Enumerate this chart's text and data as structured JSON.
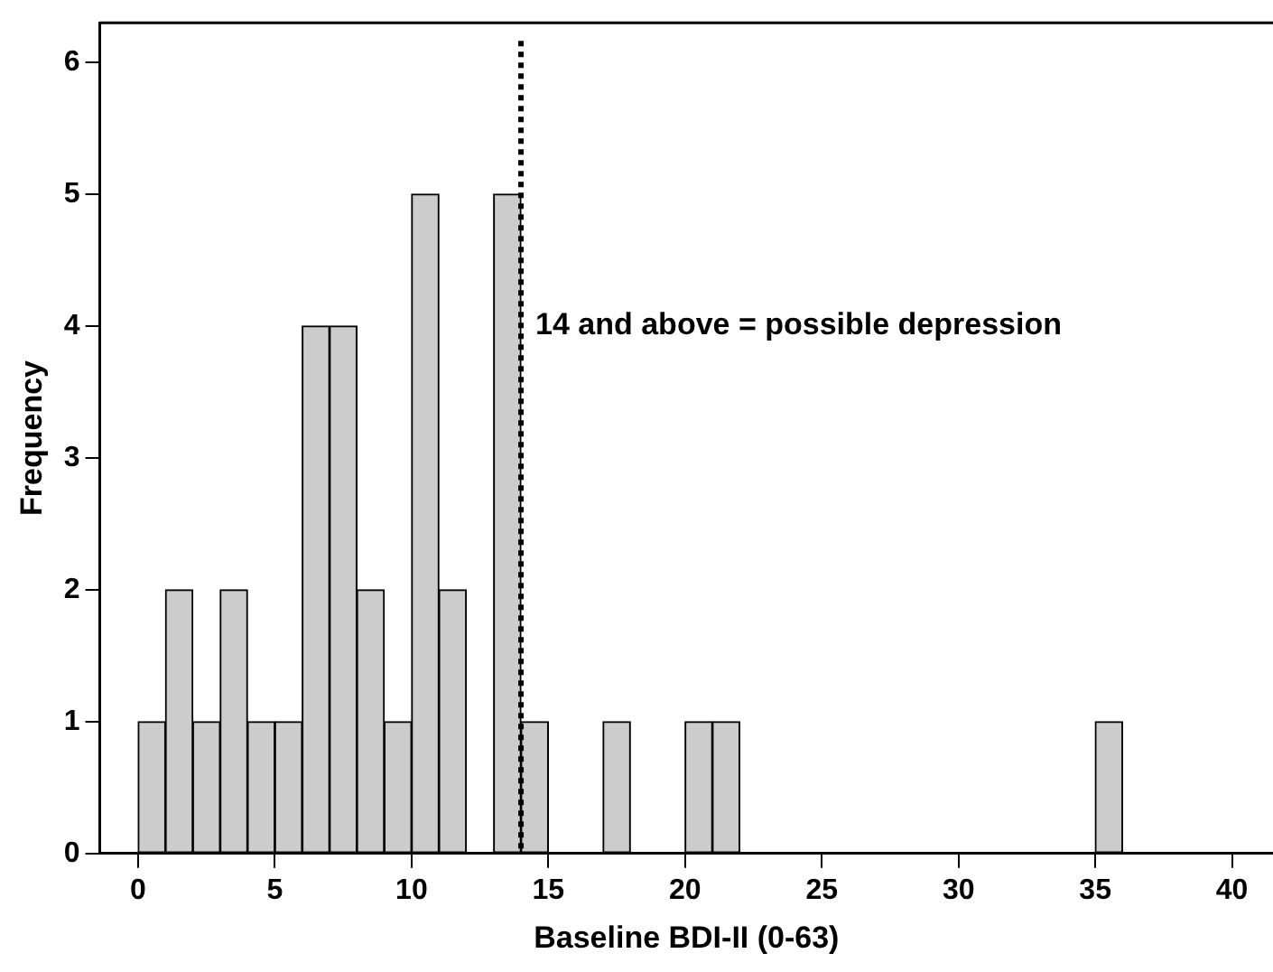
{
  "chart_data": {
    "type": "histogram",
    "xlabel": "Baseline BDI-II (0-63)",
    "ylabel": "Frequency",
    "bins": [
      0,
      1,
      2,
      3,
      4,
      5,
      6,
      7,
      8,
      9,
      10,
      11,
      12,
      13,
      14,
      15,
      16,
      17,
      18,
      19,
      20,
      21,
      22,
      23,
      24,
      25,
      26,
      27,
      28,
      29,
      30,
      31,
      32,
      33,
      34,
      35,
      36
    ],
    "values": [
      1,
      2,
      1,
      2,
      1,
      1,
      4,
      4,
      2,
      1,
      5,
      2,
      0,
      5,
      1,
      0,
      0,
      1,
      0,
      0,
      1,
      1,
      0,
      0,
      0,
      0,
      0,
      0,
      0,
      0,
      0,
      0,
      0,
      0,
      0,
      1
    ],
    "color": "#cccccc",
    "xlim": [
      -1.4,
      41.5
    ],
    "xticks": [
      0,
      5,
      10,
      15,
      20,
      25,
      30,
      35,
      40
    ],
    "ylim": [
      0,
      6.3
    ],
    "yticks": [
      0,
      1,
      2,
      3,
      4,
      5,
      6
    ],
    "ref_lines": [
      {
        "axis": "x",
        "value": 14,
        "label": "14 and above = possible depression",
        "color": "#000000",
        "line_style": "dotted"
      }
    ],
    "grid": false,
    "legend": false
  }
}
